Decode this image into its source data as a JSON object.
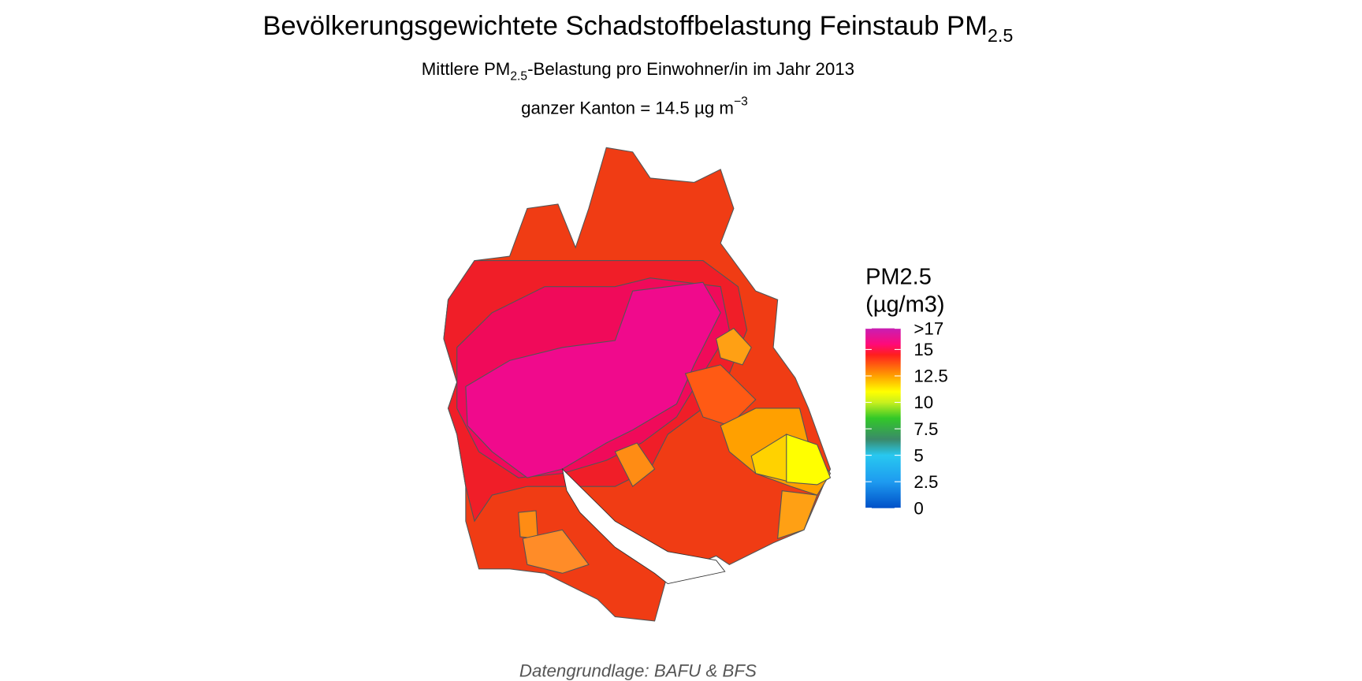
{
  "header": {
    "title": "Bevölkerungsgewichtete Schadstoffbelastung Feinstaub PM",
    "title_subscript": "2.5",
    "subtitle_start": "Mittlere PM",
    "subtitle_subscript": "2.5",
    "subtitle_end": "-Belastung pro Einwohner/in im Jahr 2013",
    "summary": "ganzer Kanton = 14.5 µg m",
    "summary_superscript": "−3"
  },
  "legend": {
    "title_line1": "PM2.5",
    "title_line2": "(µg/m3)",
    "lim": [
      0,
      17
    ],
    "ticks": [
      0,
      2.5,
      5,
      7.5,
      10,
      12.5,
      15,
      {
        "value": 17,
        "label": ">17"
      }
    ],
    "stops": [
      {
        "value": 0,
        "color": "#0050c8"
      },
      {
        "value": 2.5,
        "color": "#1e9bf0"
      },
      {
        "value": 5,
        "color": "#28c8f0"
      },
      {
        "value": 6.5,
        "color": "#3a8a6a"
      },
      {
        "value": 8.5,
        "color": "#32c828"
      },
      {
        "value": 10,
        "color": "#c8f01e"
      },
      {
        "value": 11,
        "color": "#ffff00"
      },
      {
        "value": 12.5,
        "color": "#ffa000"
      },
      {
        "value": 14.5,
        "color": "#ff1e1e"
      },
      {
        "value": 15.5,
        "color": "#ff0a78"
      },
      {
        "value": 17,
        "color": "#c81eb4"
      }
    ]
  },
  "caption": "Datengrundlage: BAFU & BFS"
}
